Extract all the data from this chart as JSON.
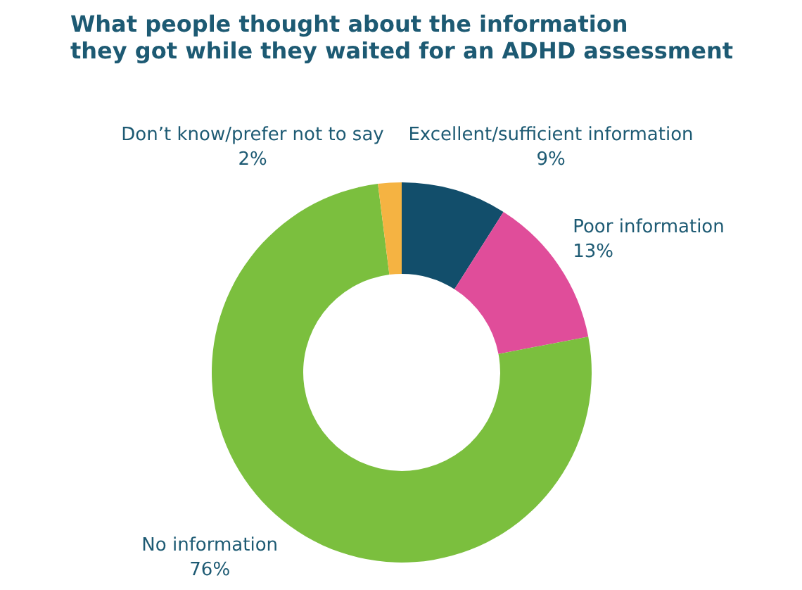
{
  "chart_data": {
    "type": "donut",
    "title": "What people thought about the information\nthey got while they waited for an ADHD assessment",
    "categories": [
      "Excellent/sufficient information",
      "Poor information",
      "No information",
      "Don’t know/prefer not to say"
    ],
    "values": [
      9,
      13,
      76,
      2
    ],
    "colors": [
      "#124e6b",
      "#e04d9a",
      "#7bbf3e",
      "#f5b342"
    ],
    "value_labels": [
      "9%",
      "13%",
      "76%",
      "2%"
    ]
  }
}
